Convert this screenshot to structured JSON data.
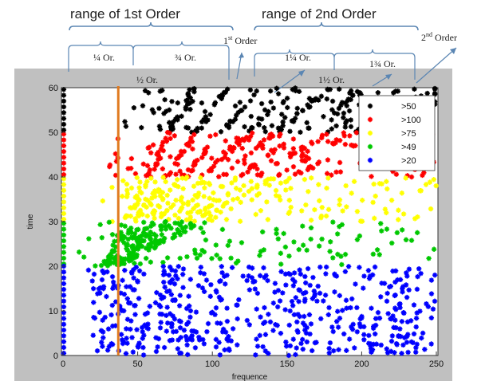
{
  "chart_data": {
    "type": "scatter",
    "title": "",
    "xlabel": "frequence",
    "ylabel": "time",
    "xlim": [
      0,
      250
    ],
    "ylim": [
      0,
      60
    ],
    "x_ticks": [
      "0",
      "50",
      "100",
      "150",
      "200",
      "250"
    ],
    "y_ticks": [
      "0",
      "10",
      "20",
      "30",
      "40",
      "50",
      "60"
    ],
    "legend": {
      "placement": "top-right",
      "entries": [
        ">50",
        ">100",
        ">75",
        ">49",
        ">20"
      ]
    },
    "series": [
      {
        "name": ">50",
        "color": "#000000",
        "band": [
          50,
          60
        ]
      },
      {
        "name": ">100",
        "color": "#ff0000",
        "band": [
          40,
          50
        ]
      },
      {
        "name": ">75",
        "color": "#ffff00",
        "band": [
          30,
          40
        ]
      },
      {
        "name": ">49",
        "color": "#00c800",
        "band": [
          20,
          30
        ]
      },
      {
        "name": ">20",
        "color": "#0000ff",
        "band": [
          0,
          20
        ]
      }
    ],
    "highlight_line": {
      "x": 37,
      "color": "#e07a20"
    },
    "annotations": {
      "range_first": "range of 1st Order",
      "range_second": "range of 2nd Order",
      "quarter": "¼ Or.",
      "half": "½ Or.",
      "three_quarter": "¾ Or.",
      "first_order": {
        "base": "1",
        "sup": "st",
        "rest": " Order"
      },
      "one_quarter": "1¼ Or.",
      "one_half": "1½ Or.",
      "one_three_quarter": "1¾ Or.",
      "second_order": {
        "base": "2",
        "sup": "nd",
        "rest": " Order"
      }
    }
  }
}
